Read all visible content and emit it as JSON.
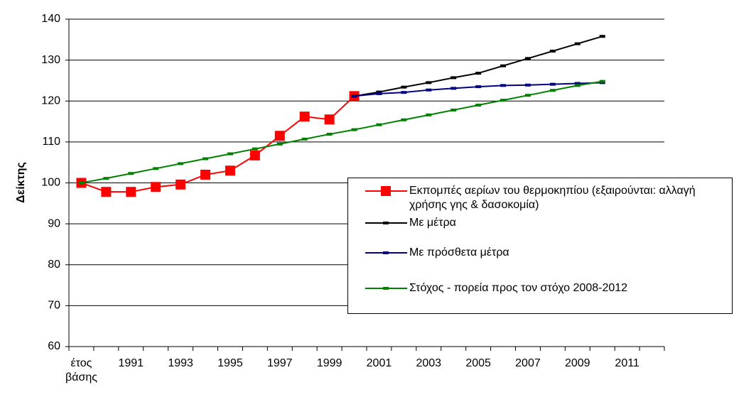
{
  "chart_data": {
    "type": "line",
    "ylabel": "Δείκτης",
    "categories": [
      "έτος βάσης",
      null,
      "1991",
      null,
      "1993",
      null,
      "1995",
      null,
      "1997",
      null,
      "1999",
      null,
      "2001",
      null,
      "2003",
      null,
      "2005",
      null,
      "2007",
      null,
      "2009",
      null,
      "2011",
      null
    ],
    "ylim": [
      60,
      140
    ],
    "yticks": [
      60,
      70,
      80,
      90,
      100,
      110,
      120,
      130,
      140
    ],
    "grid": true,
    "series": [
      {
        "name": "Εκπομπές αερίων του θερμοκηπίου (εξαιρούνται: αλλαγή χρήσης γης & δασοκομία)",
        "color": "#ff0000",
        "marker": "square",
        "values": [
          100,
          97.8,
          97.8,
          99,
          99.6,
          102,
          103,
          106.7,
          111.5,
          116.2,
          115.5,
          121.2,
          null,
          null,
          null,
          null,
          null,
          null,
          null,
          null,
          null,
          null,
          null,
          null
        ]
      },
      {
        "name": "Με μέτρα",
        "color": "#000000",
        "marker": "dash",
        "values": [
          null,
          null,
          null,
          null,
          null,
          null,
          null,
          null,
          null,
          null,
          null,
          121.2,
          122.2,
          123.4,
          124.5,
          125.7,
          126.8,
          128.6,
          130.4,
          132.2,
          134.0,
          135.8,
          null,
          null
        ]
      },
      {
        "name": "Με πρόσθετα μέτρα",
        "color": "#000080",
        "marker": "dash",
        "values": [
          null,
          null,
          null,
          null,
          null,
          null,
          null,
          null,
          null,
          null,
          null,
          121.2,
          121.8,
          122.1,
          122.7,
          123.1,
          123.5,
          123.8,
          123.9,
          124.1,
          124.3,
          124.5,
          null,
          null
        ]
      },
      {
        "name": "Στόχος - πορεία προς τον στόχο 2008-2012",
        "color": "#008000",
        "marker": "dash",
        "values": [
          100,
          101.1,
          102.3,
          103.5,
          104.7,
          105.9,
          107.1,
          108.3,
          109.5,
          110.7,
          111.9,
          113.0,
          114.2,
          115.4,
          116.6,
          117.8,
          119.0,
          120.2,
          121.4,
          122.6,
          123.8,
          124.8,
          null,
          null
        ]
      }
    ]
  }
}
